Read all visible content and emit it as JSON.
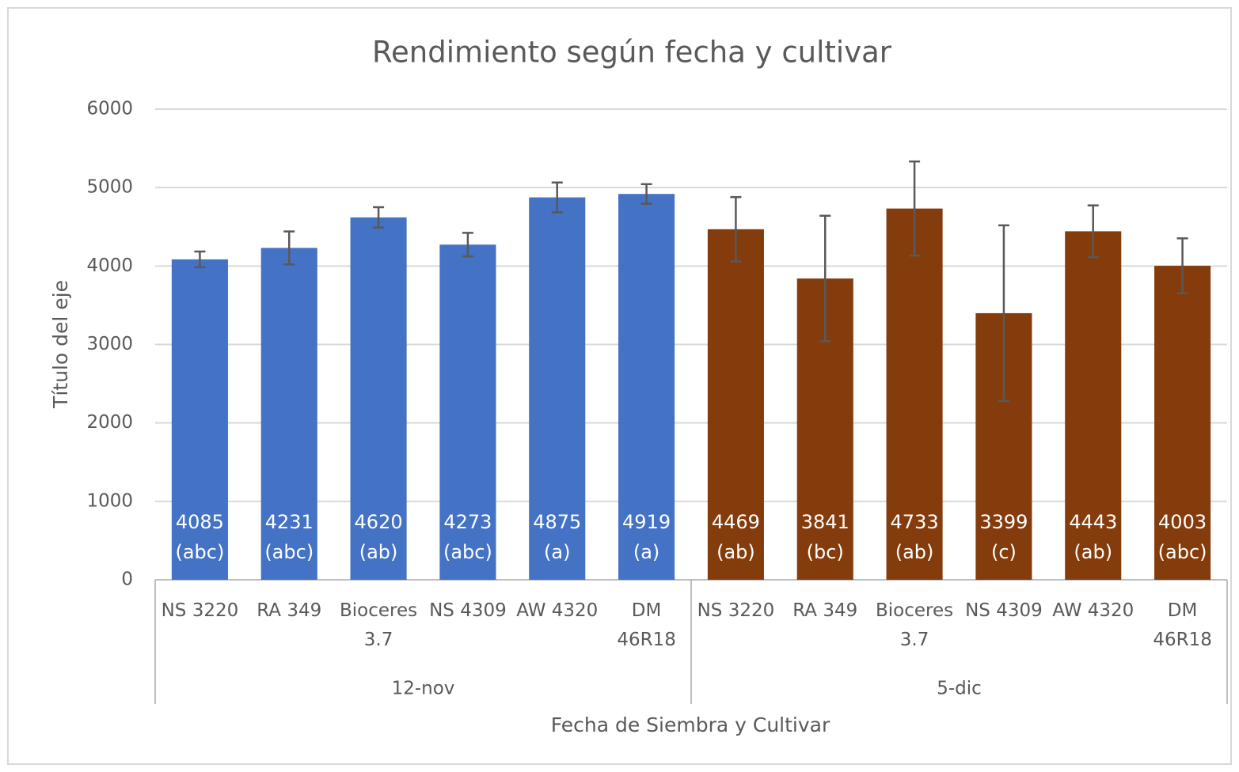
{
  "chart_data": {
    "type": "bar",
    "title": "Rendimiento según fecha y cultivar",
    "y_label": "Título del eje",
    "x_label": "Fecha de Siembra y Cultivar",
    "ylim": [
      0,
      6000
    ],
    "yticks": [
      0,
      1000,
      2000,
      3000,
      4000,
      5000,
      6000
    ],
    "grid": true,
    "groups": [
      {
        "name": "12-nov",
        "color": "#4472c4",
        "categories": [
          "NS 3220",
          "RA 349",
          "Bioceres 3.7",
          "NS 4309",
          "AW 4320",
          "DM 46R18"
        ],
        "values": [
          4085,
          4231,
          4620,
          4273,
          4875,
          4919
        ],
        "errors": [
          100,
          210,
          130,
          150,
          190,
          125
        ],
        "letters": [
          "(abc)",
          "(abc)",
          "(ab)",
          "(abc)",
          "(a)",
          "(a)"
        ]
      },
      {
        "name": "5-dic",
        "color": "#843c0c",
        "categories": [
          "NS 3220",
          "RA 349",
          "Bioceres 3.7",
          "NS 4309",
          "AW 4320",
          "DM 46R18"
        ],
        "values": [
          4469,
          3841,
          4733,
          3399,
          4443,
          4003
        ],
        "errors": [
          410,
          800,
          600,
          1120,
          330,
          350
        ],
        "letters": [
          "(ab)",
          "(bc)",
          "(ab)",
          "(c)",
          "(ab)",
          "(abc)"
        ]
      }
    ]
  }
}
